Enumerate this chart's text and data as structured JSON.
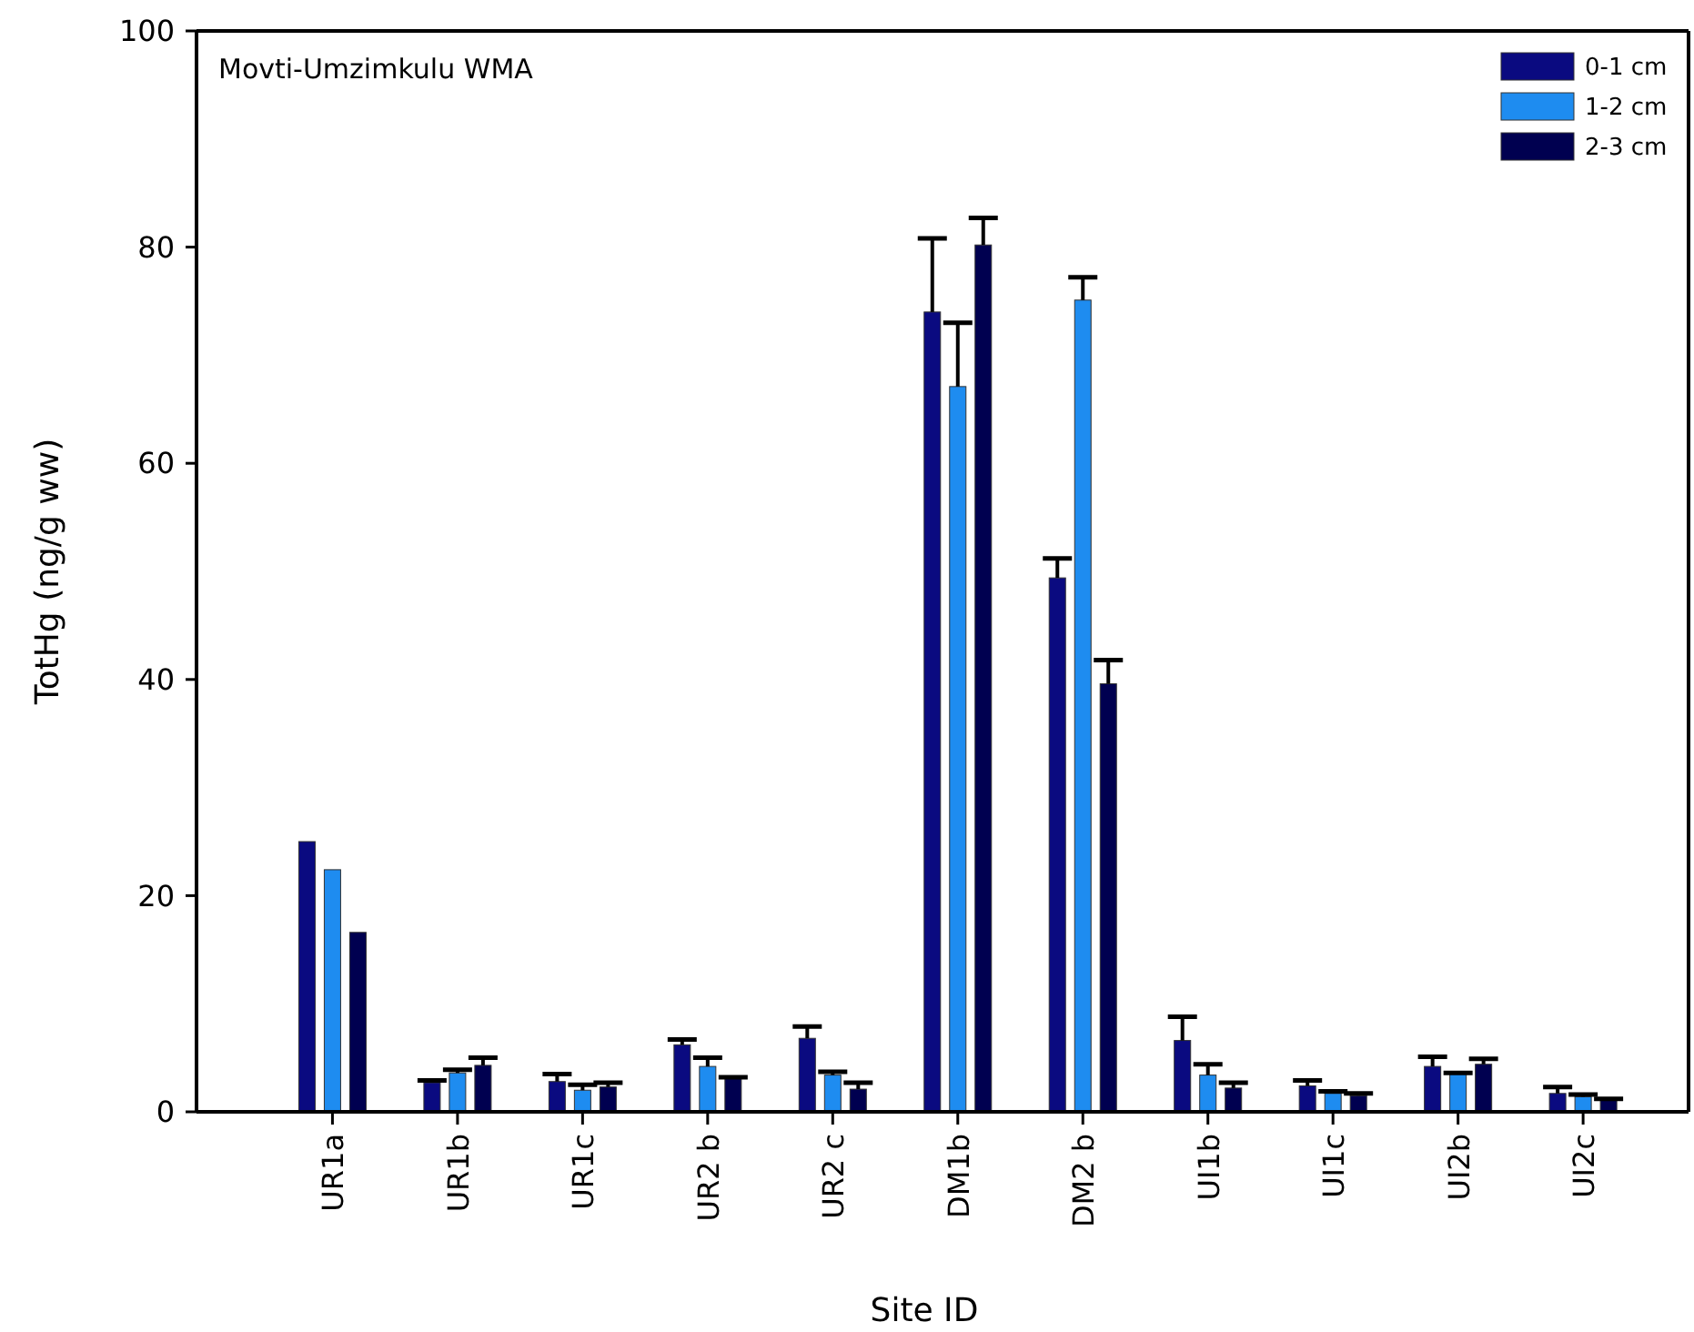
{
  "chart_data": {
    "type": "bar",
    "xlabel": "Site ID",
    "ylabel": "TotHg (ng/g ww)",
    "annotations": [
      "Movti-Umzimkulu WMA"
    ],
    "categories": [
      "UR1a",
      "UR1b",
      "UR1c",
      "UR2 b",
      "UR2 c",
      "DM1b",
      "DM2 b",
      "UI1b",
      "UI1c",
      "UI2b",
      "UI2c"
    ],
    "series": [
      {
        "name": "0-1 cm",
        "color": "#0a0a80",
        "values": [
          25.0,
          2.7,
          2.8,
          6.2,
          6.8,
          74.0,
          49.4,
          6.6,
          2.4,
          4.2,
          1.7
        ],
        "errors": [
          null,
          [
            2.7,
            2.9
          ],
          [
            2.8,
            3.5
          ],
          [
            6.2,
            6.7
          ],
          [
            6.8,
            7.9
          ],
          [
            74.0,
            80.8
          ],
          [
            49.4,
            51.2
          ],
          [
            6.6,
            8.8
          ],
          [
            2.4,
            2.9
          ],
          [
            4.2,
            5.1
          ],
          [
            1.7,
            2.3
          ]
        ]
      },
      {
        "name": "1-2 cm",
        "color": "#1e8cf0",
        "values": [
          22.4,
          3.6,
          2.0,
          4.2,
          3.4,
          67.1,
          75.1,
          3.4,
          1.7,
          3.5,
          1.4
        ],
        "errors": [
          null,
          [
            3.6,
            3.9
          ],
          [
            2.0,
            2.5
          ],
          [
            4.2,
            5.0
          ],
          [
            3.4,
            3.7
          ],
          [
            67.1,
            73.0
          ],
          [
            75.1,
            77.2
          ],
          [
            3.4,
            4.4
          ],
          [
            1.7,
            1.9
          ],
          [
            3.5,
            3.6
          ],
          [
            1.4,
            1.6
          ]
        ]
      },
      {
        "name": "2-3 cm",
        "color": "#000050",
        "values": [
          16.6,
          4.3,
          2.3,
          3.1,
          2.1,
          80.2,
          39.6,
          2.2,
          1.5,
          4.4,
          1.1
        ],
        "errors": [
          null,
          [
            4.3,
            5.0
          ],
          [
            2.3,
            2.7
          ],
          [
            3.1,
            3.2
          ],
          [
            2.1,
            2.7
          ],
          [
            80.2,
            82.7
          ],
          [
            39.6,
            41.8
          ],
          [
            2.2,
            2.7
          ],
          [
            1.5,
            1.7
          ],
          [
            4.4,
            4.9
          ],
          [
            1.1,
            1.2
          ]
        ]
      }
    ],
    "ylim": [
      0,
      100
    ],
    "yticks": [
      0,
      20,
      40,
      60,
      80,
      100
    ],
    "legend": "top right"
  }
}
